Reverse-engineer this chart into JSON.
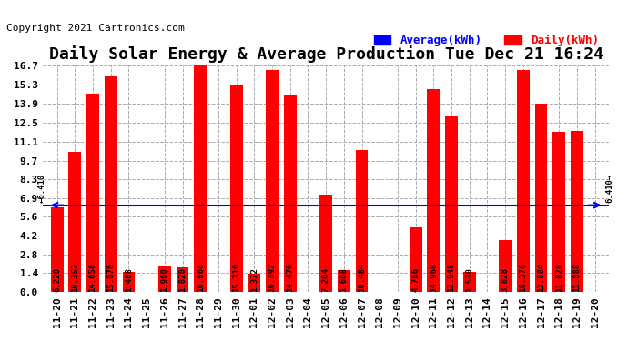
{
  "title": "Daily Solar Energy & Average Production Tue Dec 21 16:24",
  "copyright": "Copyright 2021 Cartronics.com",
  "average_label": "Average(kWh)",
  "daily_label": "Daily(kWh)",
  "average_value": 6.41,
  "categories": [
    "11-20",
    "11-21",
    "11-22",
    "11-23",
    "11-24",
    "11-25",
    "11-26",
    "11-27",
    "11-28",
    "11-29",
    "11-30",
    "12-01",
    "12-02",
    "12-03",
    "12-04",
    "12-05",
    "12-06",
    "12-07",
    "12-08",
    "12-09",
    "12-10",
    "12-11",
    "12-12",
    "12-13",
    "12-14",
    "12-15",
    "12-16",
    "12-17",
    "12-18",
    "12-19",
    "12-20"
  ],
  "values": [
    6.228,
    10.352,
    14.656,
    15.876,
    1.468,
    0.0,
    1.96,
    1.82,
    16.668,
    0.0,
    15.316,
    1.372,
    16.392,
    14.476,
    0.0,
    7.204,
    1.608,
    10.484,
    0.0,
    0.0,
    4.766,
    14.968,
    12.948,
    1.53,
    0.0,
    3.828,
    16.376,
    13.884,
    11.828,
    11.888,
    0.0
  ],
  "bar_color": "#ff0000",
  "average_line_color": "#0000ff",
  "background_color": "#ffffff",
  "plot_bg_color": "#ffffff",
  "grid_color": "#aaaaaa",
  "title_color": "#000000",
  "yticks": [
    0.0,
    1.4,
    2.8,
    4.2,
    5.6,
    6.9,
    8.3,
    9.7,
    11.1,
    12.5,
    13.9,
    15.3,
    16.7
  ],
  "ylim": [
    0.0,
    16.7
  ],
  "avg_label_color": "#0000ff",
  "daily_label_color": "#ff0000",
  "title_fontsize": 13,
  "copyright_fontsize": 8,
  "legend_fontsize": 9,
  "bar_label_fontsize": 6.5,
  "tick_fontsize": 8
}
